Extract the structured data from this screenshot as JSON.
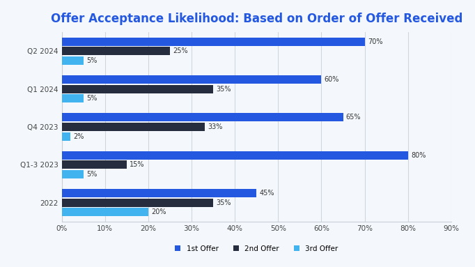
{
  "chart_data": {
    "type": "bar",
    "orientation": "horizontal",
    "title": "Offer Acceptance Likelihood: Based on Order of Offer Received",
    "categories": [
      "Q2 2024",
      "Q1 2024",
      "Q4 2023",
      "Q1-3 2023",
      "2022"
    ],
    "series": [
      {
        "name": "1st Offer",
        "color": "#2458e0",
        "values": [
          70,
          60,
          65,
          80,
          45
        ],
        "value_labels": [
          "70%",
          "60%",
          "65%",
          "80%",
          "45%"
        ]
      },
      {
        "name": "2nd Offer",
        "color": "#262d3f",
        "values": [
          25,
          35,
          33,
          15,
          35
        ],
        "value_labels": [
          "25%",
          "35%",
          "33%",
          "15%",
          "35%"
        ]
      },
      {
        "name": "3rd Offer",
        "color": "#41b4f0",
        "values": [
          5,
          5,
          2,
          5,
          20
        ],
        "value_labels": [
          "5%",
          "5%",
          "2%",
          "5%",
          "20%"
        ]
      }
    ],
    "xlim": [
      0,
      90
    ],
    "xticks": [
      {
        "value": 0,
        "label": "0%"
      },
      {
        "value": 10,
        "label": "10%"
      },
      {
        "value": 20,
        "label": "20%"
      },
      {
        "value": 30,
        "label": "30%"
      },
      {
        "value": 40,
        "label": "40%"
      },
      {
        "value": 50,
        "label": "50%"
      },
      {
        "value": 60,
        "label": "60%"
      },
      {
        "value": 70,
        "label": "70%"
      },
      {
        "value": 80,
        "label": "80%"
      },
      {
        "value": 90,
        "label": "90%"
      }
    ],
    "grid": true,
    "legend": "bottom",
    "data_labels": true
  }
}
